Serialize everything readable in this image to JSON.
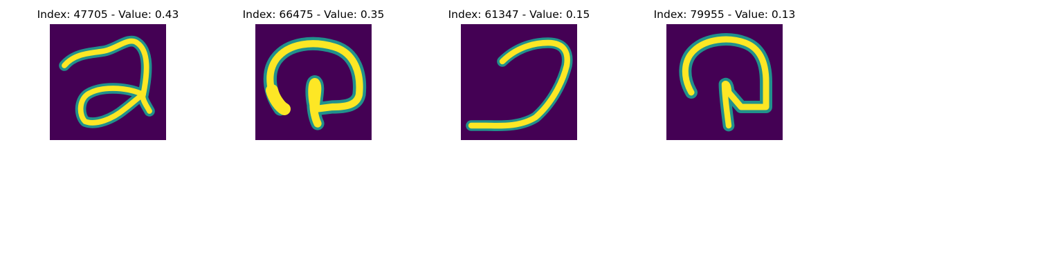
{
  "panels": [
    {
      "title": "Index: 47705 - Value: 0.43"
    },
    {
      "title": "Index: 66475 - Value: 0.35"
    },
    {
      "title": "Index: 61347 - Value: 0.15"
    },
    {
      "title": "Index: 79955 - Value: 0.13"
    }
  ],
  "colors": {
    "background": "#440154",
    "stroke_edge": "#21918c",
    "stroke_mid": "#5ec962",
    "stroke_core": "#fde725"
  }
}
